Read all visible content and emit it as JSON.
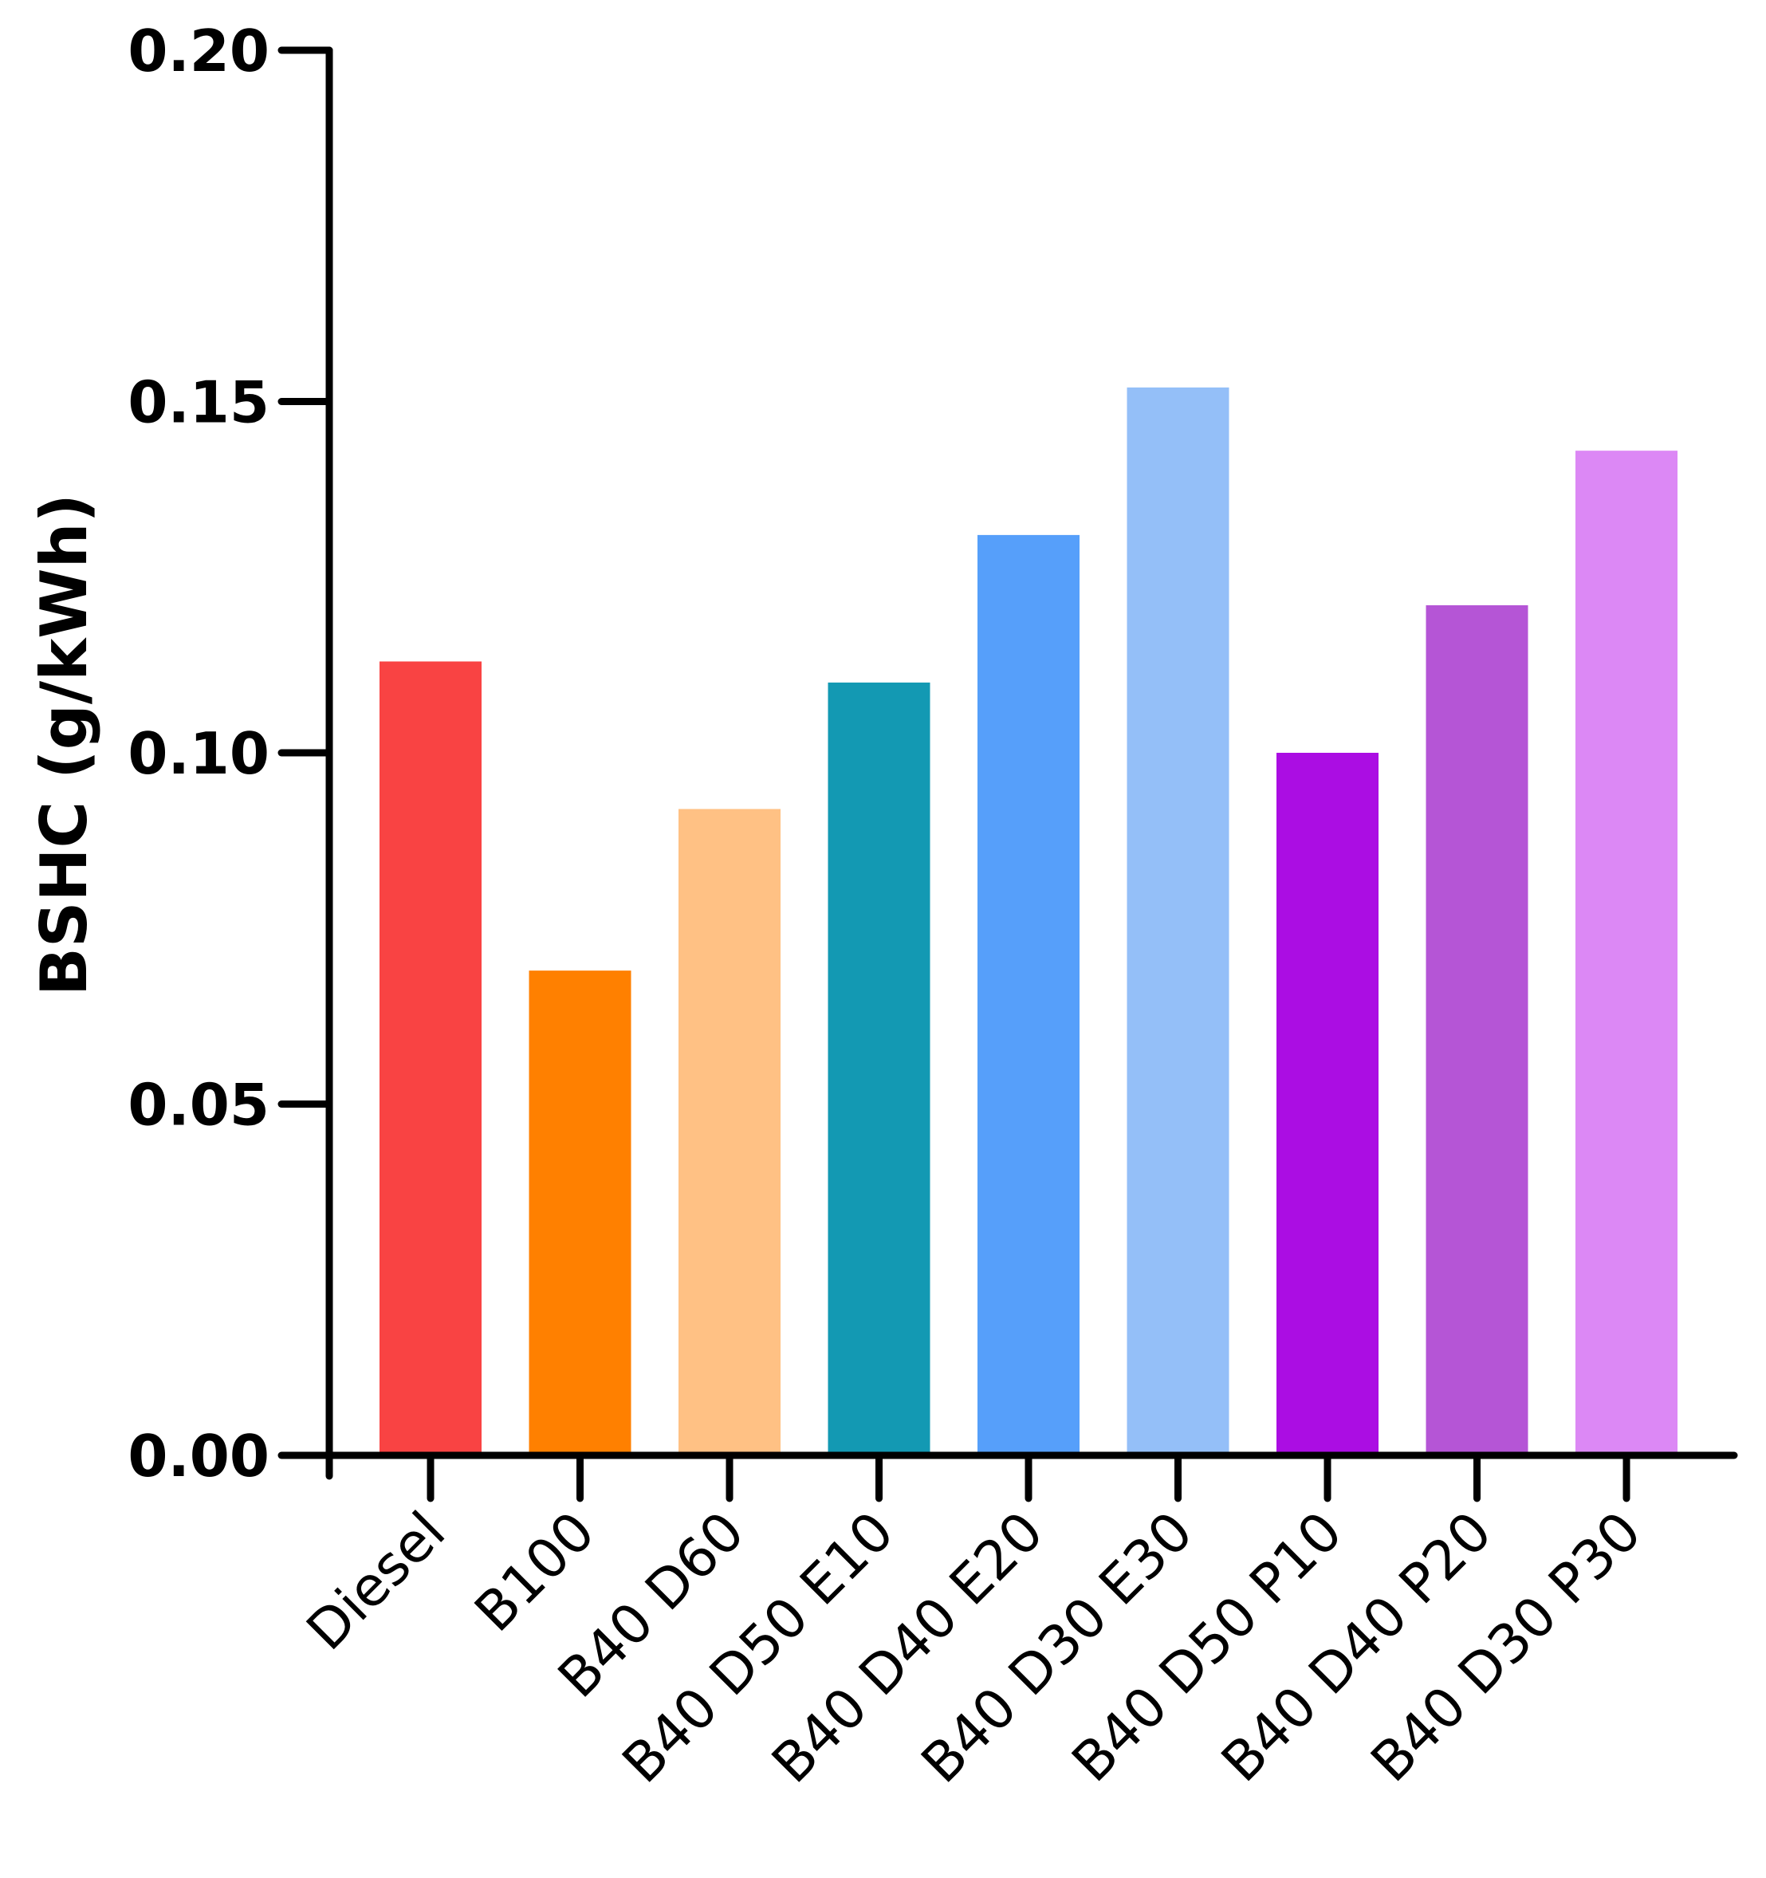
{
  "chart_data": {
    "type": "bar",
    "title": "",
    "xlabel": "",
    "ylabel": "BSHC (g/kWh)",
    "ylim": [
      0,
      0.2
    ],
    "yticks": [
      "0.00",
      "0.05",
      "0.10",
      "0.15",
      "0.20"
    ],
    "categories": [
      "Diesel",
      "B100",
      "B40 D60",
      "B40 D50 E10",
      "B40 D40 E20",
      "B40 D30 E30",
      "B40 D50 P10",
      "B40 D40 P20",
      "B40 D30 P30"
    ],
    "values": [
      0.113,
      0.069,
      0.092,
      0.11,
      0.131,
      0.152,
      0.1,
      0.121,
      0.143
    ],
    "colors": [
      "#F94343",
      "#FF8000",
      "#FFC184",
      "#1399B3",
      "#569FFA",
      "#94BFF8",
      "#AB0DE3",
      "#B555D6",
      "#DC88F5"
    ],
    "grid": false,
    "legend": "none"
  }
}
